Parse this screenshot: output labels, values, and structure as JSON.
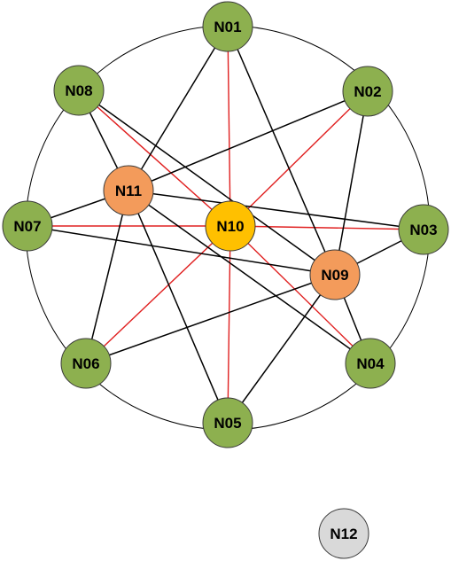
{
  "colors": {
    "outer_node": "#8db04f",
    "inner_node": "#f39b5b",
    "center_node": "#ffc000",
    "isolated_node": "#d9d9d9",
    "node_stroke": "#3a3a3a",
    "black_edge": "#000000",
    "red_edge": "#e02020",
    "ring": "#000000"
  },
  "nodes": [
    {
      "id": "N01",
      "label": "N01",
      "type": "outer"
    },
    {
      "id": "N02",
      "label": "N02",
      "type": "outer"
    },
    {
      "id": "N03",
      "label": "N03",
      "type": "outer"
    },
    {
      "id": "N04",
      "label": "N04",
      "type": "outer"
    },
    {
      "id": "N05",
      "label": "N05",
      "type": "outer"
    },
    {
      "id": "N06",
      "label": "N06",
      "type": "outer"
    },
    {
      "id": "N07",
      "label": "N07",
      "type": "outer"
    },
    {
      "id": "N08",
      "label": "N08",
      "type": "outer"
    },
    {
      "id": "N09",
      "label": "N09",
      "type": "inner"
    },
    {
      "id": "N10",
      "label": "N10",
      "type": "center"
    },
    {
      "id": "N11",
      "label": "N11",
      "type": "inner"
    },
    {
      "id": "N12",
      "label": "N12",
      "type": "isolated"
    }
  ],
  "edges": [
    {
      "from": "N10",
      "to": "N01",
      "color": "red"
    },
    {
      "from": "N10",
      "to": "N02",
      "color": "red"
    },
    {
      "from": "N10",
      "to": "N03",
      "color": "red"
    },
    {
      "from": "N10",
      "to": "N04",
      "color": "red"
    },
    {
      "from": "N10",
      "to": "N05",
      "color": "red"
    },
    {
      "from": "N10",
      "to": "N06",
      "color": "red"
    },
    {
      "from": "N10",
      "to": "N07",
      "color": "red"
    },
    {
      "from": "N10",
      "to": "N08",
      "color": "red"
    },
    {
      "from": "N09",
      "to": "N01",
      "color": "black"
    },
    {
      "from": "N09",
      "to": "N02",
      "color": "black"
    },
    {
      "from": "N09",
      "to": "N03",
      "color": "black"
    },
    {
      "from": "N09",
      "to": "N04",
      "color": "black"
    },
    {
      "from": "N09",
      "to": "N05",
      "color": "black"
    },
    {
      "from": "N09",
      "to": "N06",
      "color": "black"
    },
    {
      "from": "N09",
      "to": "N07",
      "color": "black"
    },
    {
      "from": "N09",
      "to": "N08",
      "color": "black"
    },
    {
      "from": "N11",
      "to": "N01",
      "color": "black"
    },
    {
      "from": "N11",
      "to": "N02",
      "color": "black"
    },
    {
      "from": "N11",
      "to": "N03",
      "color": "black"
    },
    {
      "from": "N11",
      "to": "N04",
      "color": "black"
    },
    {
      "from": "N11",
      "to": "N05",
      "color": "black"
    },
    {
      "from": "N11",
      "to": "N06",
      "color": "black"
    },
    {
      "from": "N11",
      "to": "N07",
      "color": "black"
    },
    {
      "from": "N11",
      "to": "N08",
      "color": "black"
    }
  ]
}
